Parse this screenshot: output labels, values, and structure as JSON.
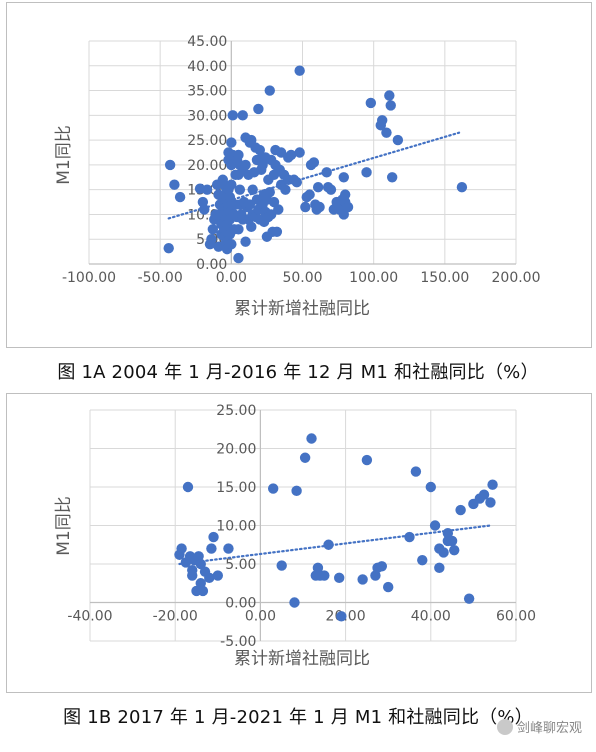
{
  "chart_data": [
    {
      "type": "scatter",
      "caption": "图 1A 2004 年 1 月-2016 年 12 月 M1 和社融同比（%）",
      "xlabel": "累计新增社融同比",
      "ylabel": "M1同比",
      "xlim": [
        -100,
        200
      ],
      "ylim": [
        0,
        45
      ],
      "xticks": [
        "-100.00",
        "-50.00",
        "0.00",
        "50.00",
        "100.00",
        "150.00",
        "200.00"
      ],
      "yticks": [
        "0.00",
        "5.00",
        "10.00",
        "15.00",
        "20.00",
        "25.00",
        "30.00",
        "35.00",
        "40.00",
        "45.00"
      ],
      "grid": true,
      "trendline": {
        "style": "dotted",
        "from": [
          -44,
          9.2
        ],
        "to": [
          160,
          26.5
        ]
      },
      "points": [
        [
          -44,
          3.2
        ],
        [
          -43,
          20
        ],
        [
          -40,
          16
        ],
        [
          -36,
          13.5
        ],
        [
          -22,
          15.2
        ],
        [
          -20,
          12.5
        ],
        [
          -19,
          11
        ],
        [
          -17,
          15
        ],
        [
          -15,
          4
        ],
        [
          -14,
          5
        ],
        [
          -13,
          7
        ],
        [
          -12,
          9
        ],
        [
          -11,
          10
        ],
        [
          -10,
          16
        ],
        [
          -9,
          14
        ],
        [
          -9,
          3.5
        ],
        [
          -8,
          12
        ],
        [
          -8,
          9.5
        ],
        [
          -7,
          8
        ],
        [
          -7,
          6
        ],
        [
          -6,
          17
        ],
        [
          -6,
          13
        ],
        [
          -6,
          11
        ],
        [
          -5,
          10
        ],
        [
          -5,
          7
        ],
        [
          -5,
          5.5
        ],
        [
          -5,
          3.8
        ],
        [
          -4,
          15.5
        ],
        [
          -4,
          14
        ],
        [
          -4,
          12.5
        ],
        [
          -4,
          9
        ],
        [
          -3,
          8
        ],
        [
          -3,
          6.5
        ],
        [
          -3,
          4.5
        ],
        [
          -3,
          3
        ],
        [
          -2,
          22.5
        ],
        [
          -2,
          21
        ],
        [
          -2,
          15
        ],
        [
          -2,
          11
        ],
        [
          -1,
          13.5
        ],
        [
          -1,
          10.5
        ],
        [
          -1,
          9
        ],
        [
          -1,
          6
        ],
        [
          0,
          24.5
        ],
        [
          0,
          22
        ],
        [
          0,
          20
        ],
        [
          0,
          16
        ],
        [
          0,
          12
        ],
        [
          0,
          4
        ],
        [
          1,
          30
        ],
        [
          1,
          22
        ],
        [
          2,
          10
        ],
        [
          2,
          7
        ],
        [
          3,
          18
        ],
        [
          3,
          12
        ],
        [
          4,
          21
        ],
        [
          4,
          9.5
        ],
        [
          5,
          22
        ],
        [
          5,
          18
        ],
        [
          5,
          7
        ],
        [
          5,
          1.2
        ],
        [
          6,
          20
        ],
        [
          6,
          15
        ],
        [
          6,
          12
        ],
        [
          7,
          10
        ],
        [
          8,
          30
        ],
        [
          8,
          19
        ],
        [
          8,
          9
        ],
        [
          9,
          12.5
        ],
        [
          10,
          25.5
        ],
        [
          10,
          20
        ],
        [
          10,
          4.5
        ],
        [
          11,
          11.5
        ],
        [
          12,
          18
        ],
        [
          12,
          9
        ],
        [
          13,
          24.5
        ],
        [
          13,
          12
        ],
        [
          14,
          25
        ],
        [
          14,
          7.5
        ],
        [
          15,
          15
        ],
        [
          15,
          10
        ],
        [
          16,
          18.5
        ],
        [
          17,
          23.5
        ],
        [
          17,
          9.5
        ],
        [
          18,
          21
        ],
        [
          18,
          13
        ],
        [
          19,
          31.3
        ],
        [
          19,
          11
        ],
        [
          20,
          23
        ],
        [
          20,
          21
        ],
        [
          20,
          9
        ],
        [
          21,
          19
        ],
        [
          22,
          20
        ],
        [
          22,
          12
        ],
        [
          23,
          14
        ],
        [
          23,
          8.5
        ],
        [
          24,
          21.5
        ],
        [
          24,
          10.5
        ],
        [
          25,
          13
        ],
        [
          25,
          5.5
        ],
        [
          26,
          17
        ],
        [
          26,
          9.5
        ],
        [
          27,
          35
        ],
        [
          27,
          14.5
        ],
        [
          28,
          21
        ],
        [
          28,
          10
        ],
        [
          29,
          6.5
        ],
        [
          30,
          18
        ],
        [
          30,
          12.5
        ],
        [
          31,
          23
        ],
        [
          31,
          20
        ],
        [
          32,
          6.5
        ],
        [
          33,
          11
        ],
        [
          34,
          19
        ],
        [
          35,
          22.5
        ],
        [
          35,
          16
        ],
        [
          37,
          18
        ],
        [
          38,
          15
        ],
        [
          40,
          21.5
        ],
        [
          40,
          17
        ],
        [
          42,
          22
        ],
        [
          44,
          17
        ],
        [
          46,
          16.5
        ],
        [
          48,
          22.5
        ],
        [
          48,
          39
        ],
        [
          52,
          11.5
        ],
        [
          53,
          13.5
        ],
        [
          55,
          14
        ],
        [
          56,
          20
        ],
        [
          58,
          20.5
        ],
        [
          59,
          12
        ],
        [
          60,
          11
        ],
        [
          61,
          15.5
        ],
        [
          62,
          11.5
        ],
        [
          67,
          18.5
        ],
        [
          68,
          15.5
        ],
        [
          70,
          15
        ],
        [
          72,
          11
        ],
        [
          74,
          12.5
        ],
        [
          76,
          11
        ],
        [
          78,
          13
        ],
        [
          79,
          10
        ],
        [
          79,
          17.5
        ],
        [
          80,
          12.5
        ],
        [
          80,
          14
        ],
        [
          82,
          11.5
        ],
        [
          95,
          18.5
        ],
        [
          98,
          32.5
        ],
        [
          105,
          28
        ],
        [
          106,
          29
        ],
        [
          109,
          26.5
        ],
        [
          111,
          34
        ],
        [
          112,
          32
        ],
        [
          113,
          17.5
        ],
        [
          117,
          25
        ],
        [
          162,
          15.5
        ]
      ]
    },
    {
      "type": "scatter",
      "caption": "图 1B 2017 年 1 月-2021 年 1 月 M1 和社融同比（%）",
      "xlabel": "累计新增社融同比",
      "ylabel": "M1同比",
      "xlim": [
        -40,
        60
      ],
      "ylim": [
        -5,
        25
      ],
      "xticks": [
        "-40.00",
        "-20.00",
        "0.00",
        "20.00",
        "40.00",
        "60.00"
      ],
      "yticks": [
        "-5.00",
        "0.00",
        "5.00",
        "10.00",
        "15.00",
        "20.00",
        "25.00"
      ],
      "grid": true,
      "trendline": {
        "style": "dotted",
        "from": [
          -19,
          5.0
        ],
        "to": [
          54,
          10.0
        ]
      },
      "points": [
        [
          -19,
          6.2
        ],
        [
          -18.5,
          7
        ],
        [
          -17.5,
          5.2
        ],
        [
          -17,
          15
        ],
        [
          -16.5,
          6
        ],
        [
          -16,
          4.2
        ],
        [
          -16,
          3.5
        ],
        [
          -15.5,
          5.5
        ],
        [
          -15,
          1.5
        ],
        [
          -14.5,
          6
        ],
        [
          -14,
          2.5
        ],
        [
          -14,
          5
        ],
        [
          -13.5,
          1.5
        ],
        [
          -13,
          4
        ],
        [
          -12,
          3.2
        ],
        [
          -11.5,
          7
        ],
        [
          -11,
          8.5
        ],
        [
          -10,
          3.5
        ],
        [
          -7.5,
          7
        ],
        [
          3,
          14.8
        ],
        [
          5,
          4.8
        ],
        [
          8,
          0
        ],
        [
          8.5,
          14.5
        ],
        [
          10.5,
          18.8
        ],
        [
          12,
          21.3
        ],
        [
          13,
          3.5
        ],
        [
          13.5,
          4.5
        ],
        [
          14,
          3.5
        ],
        [
          15,
          3.5
        ],
        [
          16,
          7.5
        ],
        [
          18.5,
          3.2
        ],
        [
          19,
          -1.8
        ],
        [
          24,
          3
        ],
        [
          25,
          18.5
        ],
        [
          27,
          3.5
        ],
        [
          27.5,
          4.5
        ],
        [
          28.5,
          4.7
        ],
        [
          30,
          2
        ],
        [
          35,
          8.5
        ],
        [
          36.5,
          17
        ],
        [
          38,
          5.5
        ],
        [
          40,
          15
        ],
        [
          41,
          10
        ],
        [
          42,
          7
        ],
        [
          42,
          4.5
        ],
        [
          43,
          6.5
        ],
        [
          44,
          8
        ],
        [
          44,
          9
        ],
        [
          45,
          8
        ],
        [
          45.5,
          6.8
        ],
        [
          47,
          12
        ],
        [
          49,
          0.5
        ],
        [
          50,
          12.8
        ],
        [
          51.5,
          13.5
        ],
        [
          52.5,
          14
        ],
        [
          54,
          13
        ],
        [
          54.5,
          15.3
        ]
      ]
    }
  ],
  "colors": {
    "marker": "#4472c4",
    "trend": "#4472c4",
    "grid": "#d9d9d9",
    "axis": "#bfbfbf",
    "tick_text": "#595959"
  },
  "watermark": {
    "text": "剑峰聊宏观",
    "icon": "wechat-icon"
  }
}
